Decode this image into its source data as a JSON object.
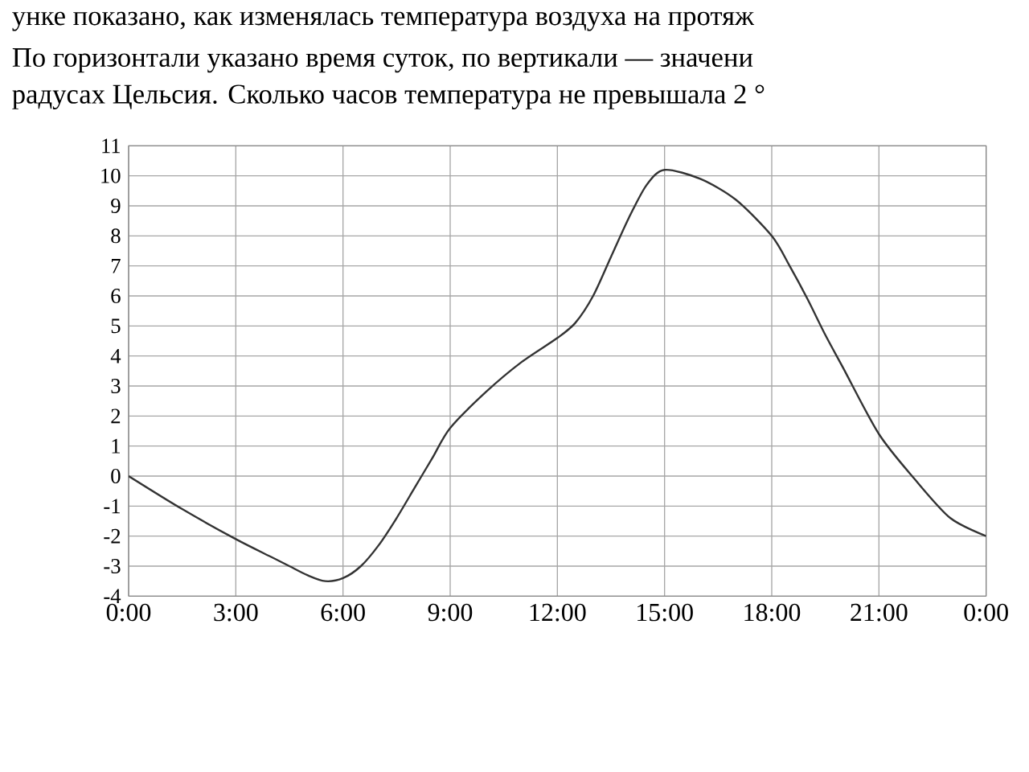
{
  "chart_data": {
    "type": "line",
    "annotations": [
      "унке показано, как изменялась температура воздуха на протяж",
      "По горизонтали указано время суток, по вертикали — значени",
      "радусах Цельсия. Сколько часов температура не превышала 2 °"
    ],
    "x": [
      0,
      1.5,
      3,
      4,
      4.5,
      5,
      5.5,
      6,
      6.5,
      7,
      7.5,
      8,
      8.5,
      9,
      10,
      11,
      12,
      12.5,
      13,
      13.5,
      14,
      14.5,
      15,
      16,
      17,
      18,
      18.5,
      19,
      19.5,
      20,
      21,
      22,
      23,
      24
    ],
    "series": [
      {
        "color": "#333333",
        "values": [
          0,
          -1.1,
          -2.1,
          -2.7,
          -3.0,
          -3.3,
          -3.5,
          -3.4,
          -3.0,
          -2.3,
          -1.4,
          -0.4,
          0.6,
          1.6,
          2.8,
          3.8,
          4.6,
          5.1,
          6.0,
          7.3,
          8.6,
          9.7,
          10.2,
          9.9,
          9.2,
          8.0,
          7.0,
          5.9,
          4.7,
          3.6,
          1.4,
          -0.1,
          -1.4,
          -2.0
        ]
      }
    ],
    "xlim": [
      0,
      24
    ],
    "xticks": [
      {
        "value": 0,
        "label": "0:00"
      },
      {
        "value": 3,
        "label": "3:00"
      },
      {
        "value": 6,
        "label": "6:00"
      },
      {
        "value": 9,
        "label": "9:00"
      },
      {
        "value": 12,
        "label": "12:00"
      },
      {
        "value": 15,
        "label": "15:00"
      },
      {
        "value": 18,
        "label": "18:00"
      },
      {
        "value": 21,
        "label": "21:00"
      },
      {
        "value": 24,
        "label": "0:00"
      }
    ],
    "ylim": [
      -4,
      11
    ],
    "yticks": [
      -4,
      -3,
      -2,
      -1,
      0,
      1,
      2,
      3,
      4,
      5,
      6,
      7,
      8,
      9,
      10,
      11
    ],
    "grid": true,
    "marker": "none",
    "line_style": "solid"
  }
}
